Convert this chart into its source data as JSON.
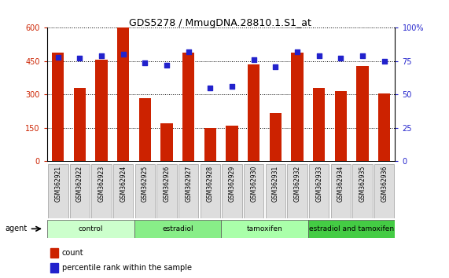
{
  "title": "GDS5278 / MmugDNA.28810.1.S1_at",
  "samples": [
    "GSM362921",
    "GSM362922",
    "GSM362923",
    "GSM362924",
    "GSM362925",
    "GSM362926",
    "GSM362927",
    "GSM362928",
    "GSM362929",
    "GSM362930",
    "GSM362931",
    "GSM362932",
    "GSM362933",
    "GSM362934",
    "GSM362935",
    "GSM362936"
  ],
  "counts": [
    490,
    330,
    455,
    600,
    285,
    170,
    490,
    150,
    160,
    435,
    215,
    490,
    330,
    315,
    430,
    305
  ],
  "percentiles": [
    78,
    77,
    79,
    80,
    74,
    72,
    82,
    55,
    56,
    76,
    71,
    82,
    79,
    77,
    79,
    75
  ],
  "groups": [
    {
      "label": "control",
      "start": 0,
      "end": 4,
      "color": "#ccffcc"
    },
    {
      "label": "estradiol",
      "start": 4,
      "end": 8,
      "color": "#88ee88"
    },
    {
      "label": "tamoxifen",
      "start": 8,
      "end": 12,
      "color": "#aaffaa"
    },
    {
      "label": "estradiol and tamoxifen",
      "start": 12,
      "end": 16,
      "color": "#44cc44"
    }
  ],
  "bar_color": "#cc2200",
  "dot_color": "#2222cc",
  "ylim_left": [
    0,
    600
  ],
  "ylim_right": [
    0,
    100
  ],
  "yticks_left": [
    0,
    150,
    300,
    450,
    600
  ],
  "ytick_labels_left": [
    "0",
    "150",
    "300",
    "450",
    "600"
  ],
  "yticks_right": [
    0,
    25,
    50,
    75,
    100
  ],
  "ytick_labels_right": [
    "0",
    "25",
    "50",
    "75",
    "100%"
  ],
  "legend_count_label": "count",
  "legend_pct_label": "percentile rank within the sample",
  "agent_label": "agent",
  "xtick_bg": "#dddddd"
}
